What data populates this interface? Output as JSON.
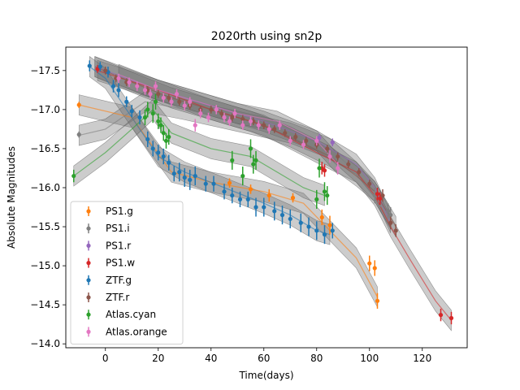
{
  "chart_data": {
    "type": "scatter",
    "title": "2020rth using sn2p",
    "xlabel": "Time(days)",
    "ylabel": "Absolute Magnitudes",
    "xlim": [
      -15,
      137
    ],
    "ylim": [
      -17.8,
      -13.95
    ],
    "y_inverted": true,
    "x_ticks": [
      0,
      20,
      40,
      60,
      80,
      100,
      120
    ],
    "x_tick_labels": [
      "0",
      "20",
      "40",
      "60",
      "80",
      "100",
      "120"
    ],
    "y_ticks": [
      -17.5,
      -17.0,
      -16.5,
      -16.0,
      -15.5,
      -15.0,
      -14.5,
      -14.0
    ],
    "y_tick_labels": [
      "−17.5",
      "−17.0",
      "−16.5",
      "−16.0",
      "−15.5",
      "−15.0",
      "−14.5",
      "−14.0"
    ],
    "grid": false,
    "legend_position": "lower-left",
    "series": [
      {
        "name": "PS1.g",
        "color": "#ff7f0e",
        "model": [
          [
            -10,
            -17.06
          ],
          [
            10,
            -16.9
          ],
          [
            25,
            -16.2
          ],
          [
            40,
            -16.07
          ],
          [
            60,
            -15.95
          ],
          [
            75,
            -15.8
          ],
          [
            85,
            -15.45
          ],
          [
            95,
            -15.1
          ],
          [
            103,
            -14.6
          ]
        ],
        "points": [
          [
            -10,
            -17.06,
            0.04
          ],
          [
            47,
            -16.06,
            0.06
          ],
          [
            55,
            -15.98,
            0.06
          ],
          [
            62,
            -15.9,
            0.08
          ],
          [
            71,
            -15.87,
            0.06
          ],
          [
            82,
            -15.62,
            0.1
          ],
          [
            85,
            -15.52,
            0.12
          ],
          [
            100,
            -15.03,
            0.1
          ],
          [
            102,
            -14.97,
            0.1
          ],
          [
            103,
            -14.55,
            0.1
          ]
        ]
      },
      {
        "name": "PS1.i",
        "color": "#7f7f7f",
        "model": [
          [
            -10,
            -16.67
          ],
          [
            0,
            -16.75
          ],
          [
            15,
            -17.1
          ],
          [
            30,
            -17.0
          ],
          [
            50,
            -16.85
          ],
          [
            70,
            -16.7
          ],
          [
            85,
            -16.5
          ],
          [
            95,
            -16.2
          ],
          [
            102,
            -15.95
          ],
          [
            108,
            -15.6
          ]
        ],
        "points": [
          [
            -10,
            -16.68,
            0.04
          ],
          [
            102,
            -15.9,
            0.1
          ],
          [
            104,
            -15.85,
            0.1
          ],
          [
            107,
            -15.7,
            0.1
          ],
          [
            108,
            -15.65,
            0.1
          ]
        ]
      },
      {
        "name": "PS1.r",
        "color": "#9467bd",
        "model": [
          [
            -4,
            -17.55
          ],
          [
            20,
            -17.25
          ],
          [
            40,
            -17.05
          ],
          [
            60,
            -16.85
          ],
          [
            80,
            -16.6
          ],
          [
            95,
            -16.3
          ],
          [
            102,
            -16.0
          ],
          [
            108,
            -15.55
          ]
        ],
        "points": [
          [
            81,
            -16.64,
            0.05
          ],
          [
            86,
            -16.58,
            0.05
          ]
        ]
      },
      {
        "name": "PS1.w",
        "color": "#d62728",
        "model": [
          [
            -3,
            -17.5
          ],
          [
            20,
            -17.25
          ],
          [
            40,
            -17.0
          ],
          [
            60,
            -16.8
          ],
          [
            80,
            -16.45
          ],
          [
            95,
            -16.2
          ],
          [
            102,
            -15.9
          ],
          [
            108,
            -15.5
          ],
          [
            115,
            -15.1
          ],
          [
            125,
            -14.55
          ],
          [
            131,
            -14.3
          ]
        ],
        "points": [
          [
            -3,
            -17.52,
            0.05
          ],
          [
            82,
            -16.25,
            0.08
          ],
          [
            83,
            -16.22,
            0.08
          ],
          [
            103,
            -15.92,
            0.08
          ],
          [
            104,
            -15.86,
            0.08
          ],
          [
            127,
            -14.37,
            0.08
          ],
          [
            131,
            -14.33,
            0.08
          ]
        ]
      },
      {
        "name": "ZTF.g",
        "color": "#1f77b4",
        "model": [
          [
            -6,
            -17.55
          ],
          [
            0,
            -17.4
          ],
          [
            10,
            -16.9
          ],
          [
            20,
            -16.4
          ],
          [
            30,
            -16.2
          ],
          [
            45,
            -16.0
          ],
          [
            60,
            -15.8
          ],
          [
            70,
            -15.65
          ],
          [
            80,
            -15.45
          ],
          [
            85,
            -15.4
          ]
        ],
        "points": [
          [
            -6,
            -17.56,
            0.07
          ],
          [
            -2,
            -17.55,
            0.06
          ],
          [
            1,
            -17.48,
            0.07
          ],
          [
            3,
            -17.3,
            0.08
          ],
          [
            5,
            -17.25,
            0.09
          ],
          [
            8,
            -17.1,
            0.07
          ],
          [
            10,
            -16.98,
            0.08
          ],
          [
            13,
            -16.9,
            0.09
          ],
          [
            16,
            -16.62,
            0.1
          ],
          [
            18,
            -16.5,
            0.1
          ],
          [
            20,
            -16.45,
            0.1
          ],
          [
            22,
            -16.4,
            0.1
          ],
          [
            24,
            -16.32,
            0.1
          ],
          [
            26,
            -16.18,
            0.1
          ],
          [
            28,
            -16.2,
            0.12
          ],
          [
            30,
            -16.13,
            0.12
          ],
          [
            32,
            -16.1,
            0.13
          ],
          [
            34,
            -16.15,
            0.12
          ],
          [
            38,
            -16.05,
            0.1
          ],
          [
            41,
            -16.05,
            0.1
          ],
          [
            45,
            -15.95,
            0.1
          ],
          [
            48,
            -15.9,
            0.1
          ],
          [
            51,
            -15.85,
            0.1
          ],
          [
            54,
            -15.85,
            0.1
          ],
          [
            57,
            -15.75,
            0.12
          ],
          [
            60,
            -15.75,
            0.12
          ],
          [
            64,
            -15.7,
            0.12
          ],
          [
            67,
            -15.65,
            0.12
          ],
          [
            70,
            -15.6,
            0.12
          ],
          [
            74,
            -15.55,
            0.12
          ],
          [
            77,
            -15.5,
            0.12
          ],
          [
            80,
            -15.45,
            0.12
          ],
          [
            83,
            -15.4,
            0.12
          ],
          [
            86,
            -15.45,
            0.1
          ]
        ]
      },
      {
        "name": "ZTF.r",
        "color": "#8c564b",
        "model": [
          [
            -4,
            -17.55
          ],
          [
            10,
            -17.35
          ],
          [
            25,
            -17.15
          ],
          [
            40,
            -17.0
          ],
          [
            55,
            -16.85
          ],
          [
            70,
            -16.65
          ],
          [
            85,
            -16.4
          ],
          [
            95,
            -16.15
          ],
          [
            102,
            -15.95
          ],
          [
            110,
            -15.5
          ]
        ],
        "points": [
          [
            0,
            -17.5,
            0.05
          ],
          [
            4,
            -17.4,
            0.05
          ],
          [
            8,
            -17.35,
            0.05
          ],
          [
            12,
            -17.3,
            0.05
          ],
          [
            16,
            -17.25,
            0.05
          ],
          [
            20,
            -17.2,
            0.05
          ],
          [
            24,
            -17.15,
            0.05
          ],
          [
            28,
            -17.1,
            0.05
          ],
          [
            32,
            -17.05,
            0.05
          ],
          [
            36,
            -17.0,
            0.05
          ],
          [
            40,
            -17.0,
            0.05
          ],
          [
            44,
            -16.95,
            0.05
          ],
          [
            48,
            -16.9,
            0.05
          ],
          [
            52,
            -16.88,
            0.05
          ],
          [
            56,
            -16.85,
            0.05
          ],
          [
            60,
            -16.8,
            0.05
          ],
          [
            64,
            -16.75,
            0.05
          ],
          [
            68,
            -16.7,
            0.05
          ],
          [
            72,
            -16.65,
            0.05
          ],
          [
            76,
            -16.6,
            0.05
          ],
          [
            80,
            -16.55,
            0.05
          ],
          [
            84,
            -16.5,
            0.05
          ],
          [
            88,
            -16.4,
            0.05
          ],
          [
            92,
            -16.3,
            0.05
          ],
          [
            96,
            -16.2,
            0.05
          ],
          [
            100,
            -16.05,
            0.05
          ],
          [
            105,
            -15.9,
            0.08
          ],
          [
            108,
            -15.55,
            0.08
          ],
          [
            110,
            -15.45,
            0.08
          ]
        ]
      },
      {
        "name": "Atlas.cyan",
        "color": "#2ca02c",
        "model": [
          [
            -12,
            -16.15
          ],
          [
            0,
            -16.45
          ],
          [
            10,
            -16.75
          ],
          [
            18,
            -17.0
          ],
          [
            25,
            -16.7
          ],
          [
            40,
            -16.5
          ],
          [
            55,
            -16.4
          ],
          [
            65,
            -16.2
          ],
          [
            75,
            -16.0
          ],
          [
            83,
            -15.9
          ]
        ],
        "points": [
          [
            -12,
            -16.15,
            0.08
          ],
          [
            15,
            -16.9,
            0.1
          ],
          [
            16,
            -17.0,
            0.1
          ],
          [
            18,
            -16.95,
            0.12
          ],
          [
            19,
            -17.1,
            0.1
          ],
          [
            20,
            -16.85,
            0.1
          ],
          [
            21,
            -16.8,
            0.1
          ],
          [
            22,
            -16.7,
            0.1
          ],
          [
            23,
            -16.6,
            0.1
          ],
          [
            24,
            -16.65,
            0.1
          ],
          [
            48,
            -16.35,
            0.12
          ],
          [
            52,
            -16.15,
            0.12
          ],
          [
            55,
            -16.5,
            0.12
          ],
          [
            56,
            -16.3,
            0.12
          ],
          [
            57,
            -16.35,
            0.12
          ],
          [
            80,
            -15.85,
            0.12
          ],
          [
            81,
            -16.25,
            0.12
          ],
          [
            83,
            -15.95,
            0.12
          ],
          [
            84,
            -15.9,
            0.12
          ]
        ]
      },
      {
        "name": "Atlas.orange",
        "color": "#e377c2",
        "model": [
          [
            5,
            -17.45
          ],
          [
            20,
            -17.25
          ],
          [
            35,
            -17.1
          ],
          [
            50,
            -16.95
          ],
          [
            65,
            -16.85
          ],
          [
            80,
            -16.6
          ],
          [
            88,
            -16.3
          ]
        ],
        "points": [
          [
            5,
            -17.4,
            0.06
          ],
          [
            9,
            -17.35,
            0.06
          ],
          [
            12,
            -17.3,
            0.06
          ],
          [
            15,
            -17.25,
            0.06
          ],
          [
            17,
            -17.2,
            0.06
          ],
          [
            19,
            -17.3,
            0.06
          ],
          [
            22,
            -17.15,
            0.06
          ],
          [
            25,
            -17.1,
            0.06
          ],
          [
            27,
            -17.2,
            0.06
          ],
          [
            30,
            -17.05,
            0.06
          ],
          [
            32,
            -17.1,
            0.06
          ],
          [
            34,
            -16.8,
            0.08
          ],
          [
            36,
            -16.95,
            0.06
          ],
          [
            39,
            -16.9,
            0.06
          ],
          [
            42,
            -17.0,
            0.06
          ],
          [
            45,
            -16.9,
            0.06
          ],
          [
            47,
            -16.85,
            0.06
          ],
          [
            49,
            -16.95,
            0.06
          ],
          [
            52,
            -16.8,
            0.06
          ],
          [
            55,
            -16.85,
            0.06
          ],
          [
            58,
            -16.8,
            0.06
          ],
          [
            62,
            -16.75,
            0.06
          ],
          [
            66,
            -16.8,
            0.06
          ],
          [
            70,
            -16.6,
            0.06
          ],
          [
            75,
            -16.55,
            0.06
          ],
          [
            80,
            -16.6,
            0.06
          ],
          [
            85,
            -16.4,
            0.08
          ],
          [
            88,
            -16.25,
            0.08
          ]
        ]
      }
    ]
  }
}
